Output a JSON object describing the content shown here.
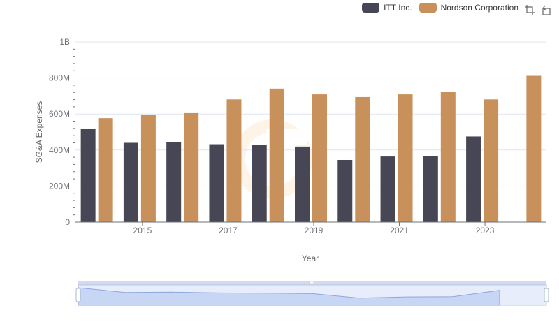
{
  "legend": {
    "items": [
      {
        "label": "ITT Inc.",
        "color": "#474654"
      },
      {
        "label": "Nordson Corporation",
        "color": "#c8915c"
      }
    ]
  },
  "toolbox": {
    "zoom_icon": "zoom-select-icon",
    "restore_icon": "restore-icon"
  },
  "chart_data": {
    "type": "bar",
    "categories": [
      "2014",
      "2015",
      "2016",
      "2017",
      "2018",
      "2019",
      "2020",
      "2021",
      "2022",
      "2023",
      "2024"
    ],
    "x_tick_labels": [
      "2015",
      "2017",
      "2019",
      "2021",
      "2023"
    ],
    "series": [
      {
        "name": "ITT Inc.",
        "color": "#474654",
        "values": [
          519,
          440,
          444,
          432,
          427,
          419,
          345,
          364,
          367,
          475,
          null
        ]
      },
      {
        "name": "Nordson Corporation",
        "color": "#c8915c",
        "values": [
          577,
          597,
          605,
          681,
          741,
          709,
          694,
          709,
          722,
          681,
          812
        ]
      }
    ],
    "unit": "millions",
    "xlabel": "Year",
    "ylabel": "SG&A Expenses",
    "ylim": [
      0,
      1000
    ],
    "y_ticks": [
      {
        "value": 0,
        "label": "0"
      },
      {
        "value": 200,
        "label": "200M"
      },
      {
        "value": 400,
        "label": "400M"
      },
      {
        "value": 600,
        "label": "600M"
      },
      {
        "value": 800,
        "label": "800M"
      },
      {
        "value": 1000,
        "label": "1B"
      }
    ],
    "grid": true,
    "legend_position": "top-right",
    "has_data_zoom_slider": true
  }
}
